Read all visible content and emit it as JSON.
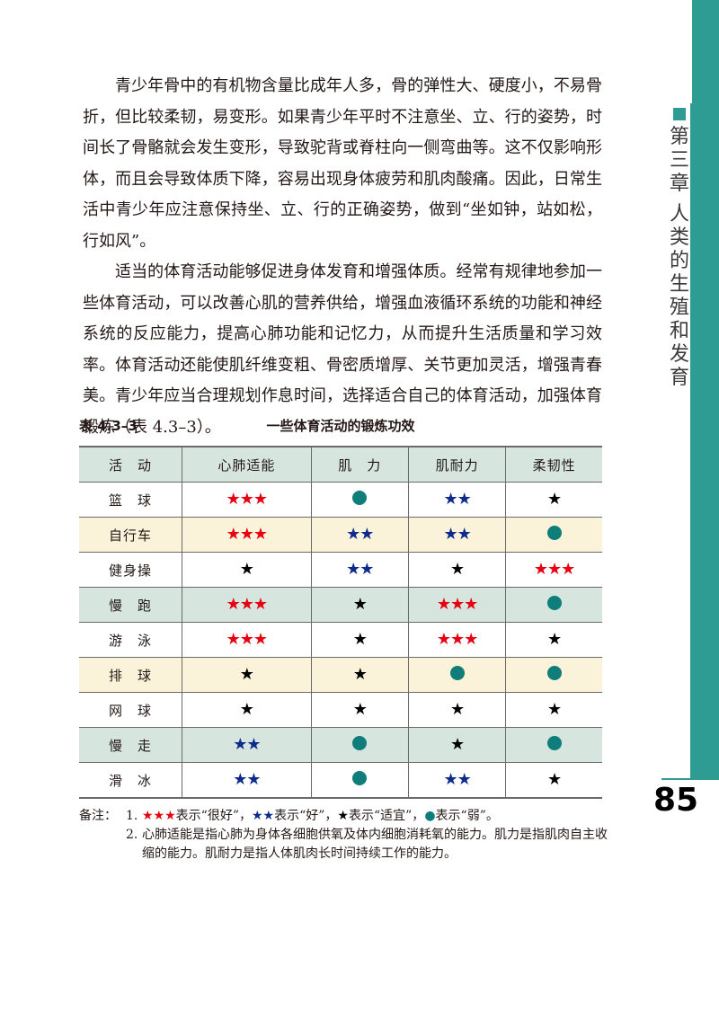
{
  "sidebar": {
    "chapter_title": [
      "第",
      "三",
      "章",
      "",
      "人",
      "类",
      "的",
      "生",
      "殖",
      "和",
      "发",
      "育"
    ],
    "accent_color": "#2f9c94"
  },
  "page_number": "85",
  "body": {
    "paragraphs": [
      "青少年骨中的有机物含量比成年人多，骨的弹性大、硬度小，不易骨折，但比较柔韧，易变形。如果青少年平时不注意坐、立、行的姿势，时间长了骨骼就会发生变形，导致驼背或脊柱向一侧弯曲等。这不仅影响形体，而且会导致体质下降，容易出现身体疲劳和肌肉酸痛。因此，日常生活中青少年应注意保持坐、立、行的正确姿势，做到“坐如钟，站如松，行如风”。",
      "适当的体育活动能够促进身体发育和增强体质。经常有规律地参加一些体育活动，可以改善心肌的营养供给，增强血液循环系统的功能和神经系统的反应能力，提高心肺功能和记忆力，从而提升生活质量和学习效率。体育活动还能使肌纤维变粗、骨密质增厚、关节更加灵活，增强青春美。青少年应当合理规划作息时间，选择适合自己的体育活动，加强体育锻炼（表 4.3–3）。"
    ]
  },
  "table": {
    "number": "表 4.3–3",
    "title": "一些体育活动的锻炼功效",
    "headers": [
      "活　动",
      "心肺适能",
      "肌　力",
      "肌耐力",
      "柔韧性"
    ],
    "rows": [
      {
        "activity": "篮　球",
        "values": [
          "★★★",
          "●",
          "★★",
          "★"
        ]
      },
      {
        "activity": "自行车",
        "values": [
          "★★★",
          "★★",
          "★★",
          "●"
        ]
      },
      {
        "activity": "健身操",
        "values": [
          "★",
          "★★",
          "★",
          "★★★"
        ]
      },
      {
        "activity": "慢　跑",
        "values": [
          "★★★",
          "★",
          "★★★",
          "●"
        ]
      },
      {
        "activity": "游　泳",
        "values": [
          "★★★",
          "★",
          "★★★",
          "★"
        ]
      },
      {
        "activity": "排　球",
        "values": [
          "★",
          "★",
          "●",
          "●"
        ]
      },
      {
        "activity": "网　球",
        "values": [
          "★",
          "★",
          "★",
          "★"
        ]
      },
      {
        "activity": "慢　走",
        "values": [
          "★★",
          "●",
          "★",
          "●"
        ]
      },
      {
        "activity": "滑　冰",
        "values": [
          "★★",
          "●",
          "★★",
          "★"
        ]
      }
    ],
    "row_shading": [
      "teal",
      "none",
      "cream",
      "none",
      "teal",
      "none",
      "cream",
      "none",
      "teal",
      "none"
    ],
    "colors": {
      "three_stars": "#e60012",
      "two_stars": "#0d2b8c",
      "one_star": "#000000",
      "dot": "#0f7d7a",
      "header_fill": "#d6e6df",
      "cream_fill": "#fbf2da"
    }
  },
  "notes": {
    "label": "备注：",
    "legend": {
      "three_stars": "★★★",
      "very_good": "表示“很好”，",
      "two_stars": "★★",
      "good": "表示“好”，",
      "one_star": "★",
      "suitable": "表示“适宜”，",
      "dot": "●",
      "weak": "表示“弱”。"
    },
    "num1": "1.",
    "num2": "2.",
    "note2": "心肺适能是指心肺为身体各细胞供氧及体内细胞消耗氧的能力。肌力是指肌肉自主收缩的能力。肌耐力是指人体肌肉长时间持续工作的能力。"
  }
}
